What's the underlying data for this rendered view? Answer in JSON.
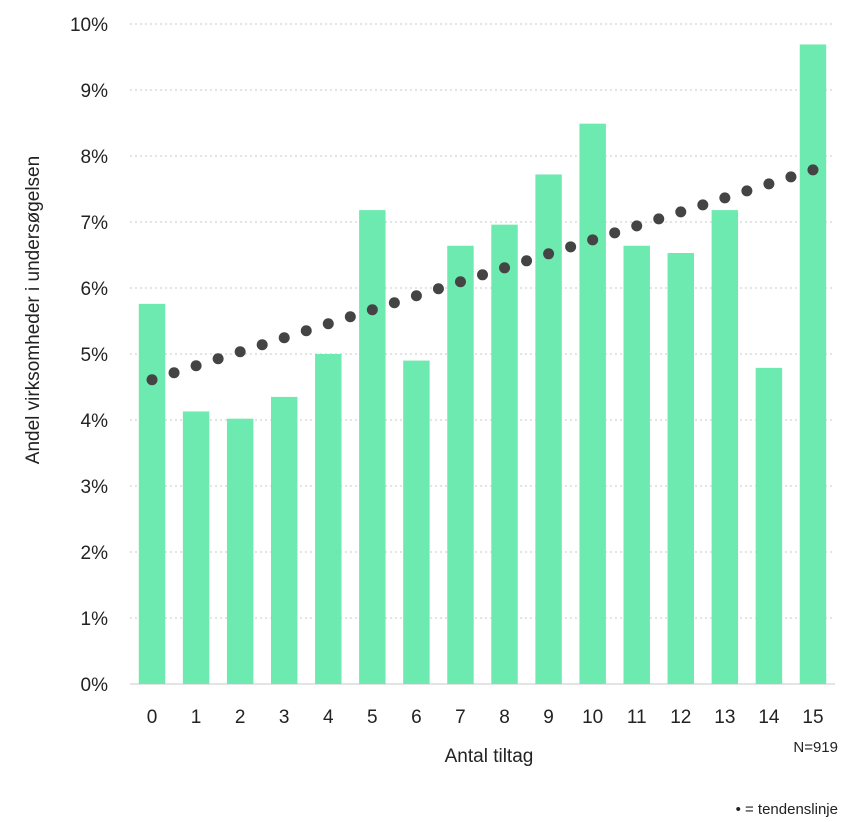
{
  "chart_data": {
    "type": "bar",
    "title": "",
    "xlabel": "Antal tiltag",
    "ylabel": "Andel virksomheder i undersøgelsen",
    "categories": [
      "0",
      "1",
      "2",
      "3",
      "4",
      "5",
      "6",
      "7",
      "8",
      "9",
      "10",
      "11",
      "12",
      "13",
      "14",
      "15"
    ],
    "values": [
      5.76,
      4.13,
      4.02,
      4.35,
      5.0,
      7.18,
      4.9,
      6.64,
      6.96,
      7.72,
      8.49,
      6.64,
      6.53,
      7.18,
      4.79,
      9.69
    ],
    "trendline": {
      "start": 4.61,
      "end": 7.79,
      "points_per_category": 2,
      "style": "dotted"
    },
    "ylim": [
      0,
      10
    ],
    "yticks": [
      "0%",
      "1%",
      "2%",
      "3%",
      "4%",
      "5%",
      "6%",
      "7%",
      "8%",
      "9%",
      "10%"
    ],
    "grid": true,
    "colors": {
      "bar": "#6deaaf",
      "trend": "#444444",
      "grid": "#c8c8c8"
    },
    "sample_note": "N=919",
    "legend_note": "• = tendenslinje"
  }
}
